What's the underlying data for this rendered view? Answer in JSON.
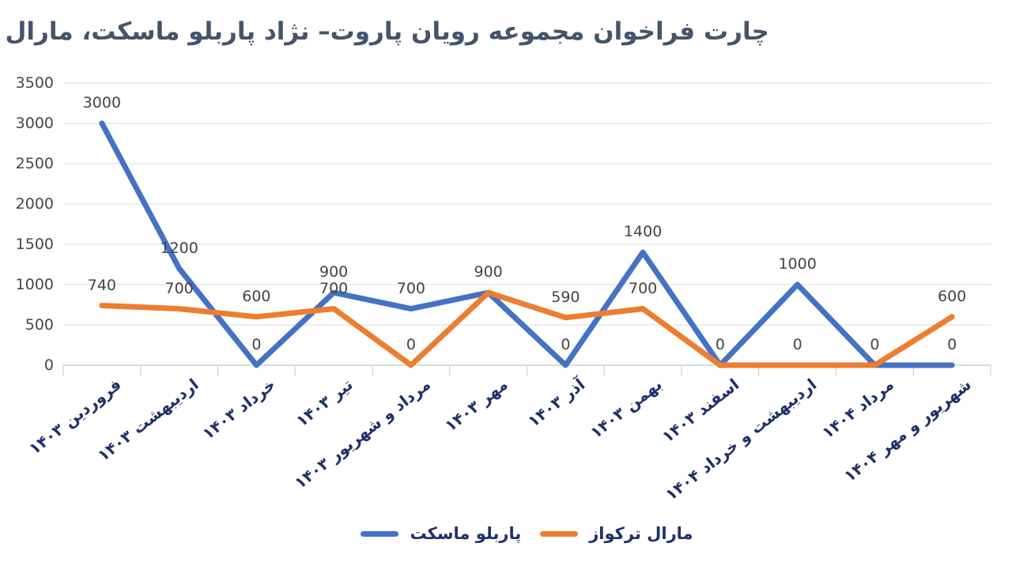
{
  "title": "چارت فراخوان مجموعه رویان پاروت– نژاد پاربلو ماسکت، مارال ترکواز",
  "colors": {
    "title": "#44546A",
    "axis_labels": "#20306B",
    "value_labels": "#444444",
    "gridline": "#E3E3E3",
    "axis_line": "#CFCFCF",
    "background": "#FFFFFF"
  },
  "chart_data": {
    "type": "line",
    "title": "چارت فراخوان مجموعه رویان پاروت– نژاد پاربلو ماسکت، مارال ترکواز",
    "categories": [
      "فروردین ۱۴۰۳",
      "اردیبهشت ۱۴۰۳",
      "خرداد ۱۴۰۳",
      "تیر ۱۴۰۳",
      "مرداد و شهریور ۱۴۰۳",
      "مهر ۱۴۰۳",
      "آذر ۱۴۰۳",
      "بهمن ۱۴۰۳",
      "اسفند ۱۴۰۳",
      "اردیبهشت و خرداد ۱۴۰۴",
      "مرداد ۱۴۰۴",
      "شهریور و مهر ۱۴۰۴"
    ],
    "series": [
      {
        "name": "پاربلو ماسکت",
        "color": "#4472C4",
        "values": [
          3000,
          1200,
          0,
          900,
          700,
          900,
          0,
          1400,
          0,
          1000,
          0,
          0
        ]
      },
      {
        "name": "مارال ترکواز",
        "color": "#ED7D31",
        "values": [
          740,
          700,
          600,
          700,
          0,
          900,
          590,
          700,
          0,
          0,
          0,
          600
        ]
      }
    ],
    "ylim": [
      0,
      3500
    ],
    "yticks": [
      0,
      500,
      1000,
      1500,
      2000,
      2500,
      3000,
      3500
    ],
    "grid": true,
    "data_labels": true,
    "legend_position": "bottom",
    "x_label_rotation_deg": 38
  }
}
